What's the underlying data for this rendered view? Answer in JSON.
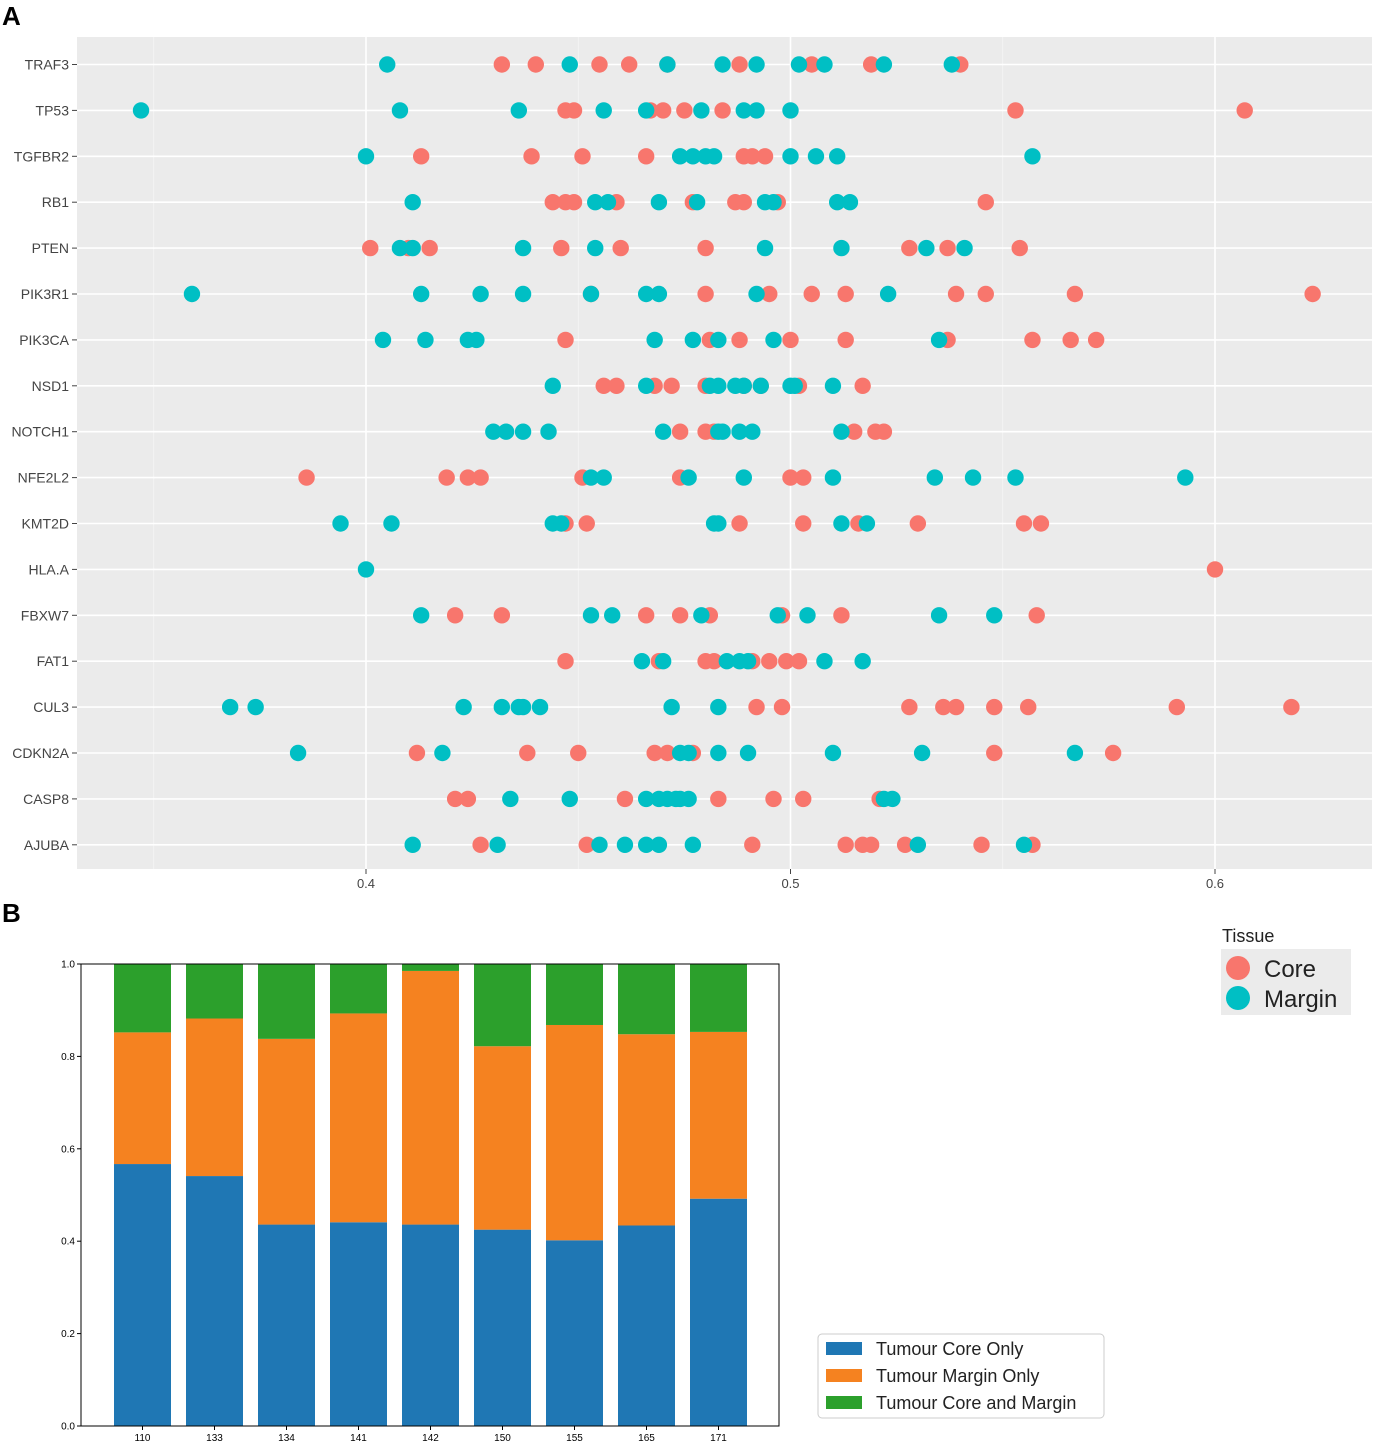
{
  "panel_labels": {
    "a": "A",
    "b": "B"
  },
  "colors": {
    "core": "#F8766D",
    "margin": "#00BFC4",
    "tumour_core_only": "#1F77B4",
    "tumour_margin_only": "#F58220",
    "tumour_core_and_margin": "#2CA02C",
    "panel_bg": "#EBEBEB",
    "grid": "#FFFFFF"
  },
  "chart_data": [
    {
      "type": "scatter",
      "title": "",
      "xlabel": "",
      "ylabel": "",
      "xlim": [
        0.335,
        0.64
      ],
      "x_ticks": [
        0.4,
        0.5,
        0.6
      ],
      "x_tick_labels": [
        "0.4",
        "0.5",
        "0.6"
      ],
      "categories": [
        "TRAF3",
        "TP53",
        "TGFBR2",
        "RB1",
        "PTEN",
        "PIK3R1",
        "PIK3CA",
        "NSD1",
        "NOTCH1",
        "NFE2L2",
        "KMT2D",
        "HLA.A",
        "FBXW7",
        "FAT1",
        "CUL3",
        "CDKN2A",
        "CASP8",
        "AJUBA"
      ],
      "legend": {
        "title": "Tissue",
        "entries": [
          "Core",
          "Margin"
        ],
        "position": "right"
      },
      "series": [
        {
          "name": "Core",
          "values": [
            [
              0.432,
              0.44,
              0.455,
              0.462,
              0.471,
              0.488,
              0.505,
              0.519,
              0.54
            ],
            [
              0.447,
              0.449,
              0.467,
              0.47,
              0.475,
              0.484,
              0.553,
              0.607
            ],
            [
              0.413,
              0.439,
              0.451,
              0.466,
              0.489,
              0.491,
              0.494
            ],
            [
              0.444,
              0.447,
              0.449,
              0.459,
              0.477,
              0.487,
              0.489,
              0.497,
              0.546
            ],
            [
              0.401,
              0.41,
              0.415,
              0.446,
              0.46,
              0.48,
              0.528,
              0.537,
              0.554
            ],
            [
              0.453,
              0.48,
              0.495,
              0.505,
              0.513,
              0.539,
              0.546,
              0.567,
              0.623
            ],
            [
              0.447,
              0.481,
              0.488,
              0.5,
              0.513,
              0.537,
              0.557,
              0.566,
              0.572
            ],
            [
              0.456,
              0.459,
              0.468,
              0.472,
              0.48,
              0.489,
              0.493,
              0.502,
              0.517
            ],
            [
              0.474,
              0.48,
              0.482,
              0.515,
              0.52,
              0.522
            ],
            [
              0.386,
              0.419,
              0.424,
              0.427,
              0.451,
              0.474,
              0.5,
              0.503
            ],
            [
              0.447,
              0.452,
              0.488,
              0.503,
              0.516,
              0.53,
              0.555,
              0.559
            ],
            [
              0.6
            ],
            [
              0.421,
              0.432,
              0.466,
              0.474,
              0.481,
              0.498,
              0.512,
              0.558
            ],
            [
              0.447,
              0.469,
              0.48,
              0.482,
              0.491,
              0.495,
              0.499,
              0.502
            ],
            [
              0.492,
              0.498,
              0.528,
              0.536,
              0.539,
              0.548,
              0.556,
              0.591,
              0.618
            ],
            [
              0.412,
              0.438,
              0.45,
              0.468,
              0.471,
              0.477,
              0.548,
              0.576
            ],
            [
              0.421,
              0.424,
              0.461,
              0.483,
              0.496,
              0.503,
              0.521
            ],
            [
              0.427,
              0.452,
              0.491,
              0.513,
              0.517,
              0.519,
              0.527,
              0.545,
              0.557
            ]
          ]
        },
        {
          "name": "Margin",
          "values": [
            [
              0.405,
              0.448,
              0.471,
              0.484,
              0.492,
              0.502,
              0.508,
              0.522,
              0.538
            ],
            [
              0.347,
              0.408,
              0.436,
              0.456,
              0.466,
              0.479,
              0.489,
              0.492,
              0.5
            ],
            [
              0.4,
              0.474,
              0.477,
              0.48,
              0.482,
              0.5,
              0.506,
              0.511,
              0.557
            ],
            [
              0.411,
              0.454,
              0.457,
              0.469,
              0.478,
              0.494,
              0.496,
              0.511,
              0.514
            ],
            [
              0.408,
              0.411,
              0.437,
              0.454,
              0.494,
              0.512,
              0.532,
              0.541
            ],
            [
              0.359,
              0.413,
              0.427,
              0.437,
              0.453,
              0.466,
              0.469,
              0.492,
              0.523
            ],
            [
              0.404,
              0.414,
              0.424,
              0.426,
              0.468,
              0.477,
              0.483,
              0.496,
              0.535
            ],
            [
              0.444,
              0.466,
              0.481,
              0.483,
              0.487,
              0.489,
              0.493,
              0.5,
              0.501,
              0.51
            ],
            [
              0.43,
              0.433,
              0.437,
              0.443,
              0.47,
              0.483,
              0.484,
              0.488,
              0.491,
              0.512
            ],
            [
              0.453,
              0.456,
              0.476,
              0.489,
              0.51,
              0.534,
              0.543,
              0.553,
              0.593
            ],
            [
              0.394,
              0.406,
              0.444,
              0.446,
              0.482,
              0.483,
              0.512,
              0.518
            ],
            [
              0.4
            ],
            [
              0.413,
              0.453,
              0.458,
              0.479,
              0.497,
              0.504,
              0.535,
              0.548
            ],
            [
              0.465,
              0.47,
              0.485,
              0.488,
              0.49,
              0.508,
              0.517
            ],
            [
              0.368,
              0.374,
              0.423,
              0.432,
              0.436,
              0.437,
              0.441,
              0.472,
              0.483
            ],
            [
              0.384,
              0.418,
              0.474,
              0.476,
              0.483,
              0.49,
              0.51,
              0.531,
              0.567
            ],
            [
              0.434,
              0.448,
              0.466,
              0.469,
              0.471,
              0.473,
              0.474,
              0.476,
              0.522,
              0.524
            ],
            [
              0.411,
              0.431,
              0.455,
              0.461,
              0.466,
              0.469,
              0.477,
              0.53,
              0.555
            ]
          ]
        }
      ]
    },
    {
      "type": "bar",
      "stacked": true,
      "title": "",
      "xlabel": "",
      "ylabel": "",
      "ylim": [
        0,
        1.0
      ],
      "y_ticks": [
        0.0,
        0.2,
        0.4,
        0.6,
        0.8,
        1.0
      ],
      "y_tick_labels": [
        "0.0",
        "0.2",
        "0.4",
        "0.6",
        "0.8",
        "1.0"
      ],
      "categories": [
        "110",
        "133",
        "134",
        "141",
        "142",
        "150",
        "155",
        "165",
        "171"
      ],
      "legend": {
        "position": "bottom-right",
        "entries": [
          "Tumour Core Only",
          "Tumour Margin Only",
          "Tumour Core and Margin"
        ]
      },
      "series": [
        {
          "name": "Tumour Core Only",
          "values": [
            0.567,
            0.541,
            0.436,
            0.441,
            0.436,
            0.425,
            0.402,
            0.434,
            0.492
          ]
        },
        {
          "name": "Tumour Margin Only",
          "values": [
            0.285,
            0.341,
            0.402,
            0.452,
            0.549,
            0.397,
            0.466,
            0.414,
            0.361
          ]
        },
        {
          "name": "Tumour Core and Margin",
          "values": [
            0.148,
            0.118,
            0.162,
            0.107,
            0.015,
            0.178,
            0.132,
            0.152,
            0.147
          ]
        }
      ]
    }
  ]
}
